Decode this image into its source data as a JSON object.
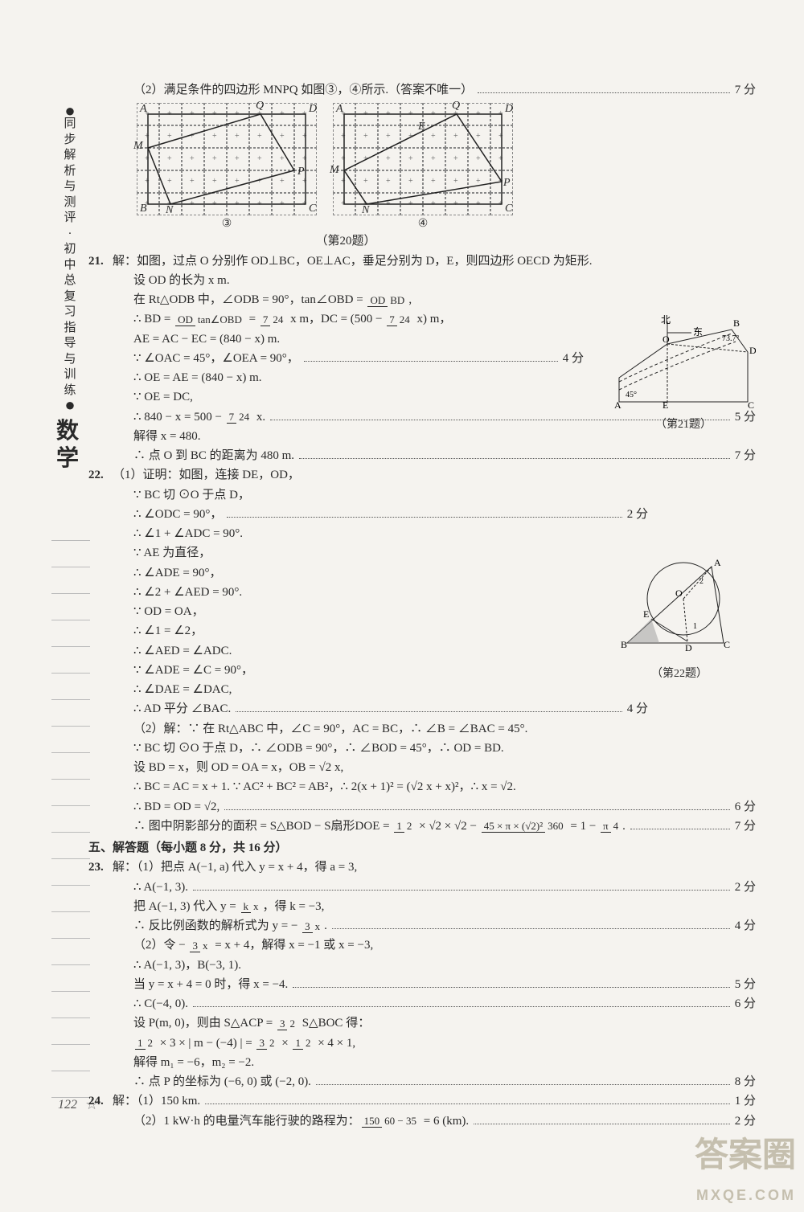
{
  "side": {
    "title_chars": [
      "●",
      "同",
      "步",
      "解",
      "析",
      "与",
      "测",
      "评",
      "·",
      "初",
      "中",
      "总",
      "复",
      "习",
      "指",
      "导",
      "与",
      "训",
      "练",
      "●"
    ],
    "subject": "数学"
  },
  "page_number": "122",
  "watermark_main": "答案圈",
  "watermark_sub": "MXQE.COM",
  "fig20": {
    "caption_row": "（第20题）",
    "label3": "③",
    "label4": "④",
    "pts3": {
      "A": "A",
      "B": "B",
      "C": "C",
      "D": "D",
      "M": "M",
      "N": "N",
      "P": "P",
      "Q": "Q"
    },
    "pts4": {
      "A": "A",
      "C": "C",
      "D": "D",
      "M": "M",
      "N": "N",
      "P": "P",
      "Q": "Q",
      "E": "E"
    },
    "grid": {
      "cols": 8,
      "rows": 5,
      "size": 28,
      "line": "#888"
    },
    "poly_color": "#222"
  },
  "diag21": {
    "caption": "（第21题）",
    "labels": {
      "N": "北",
      "E": "东",
      "A": "A",
      "B": "B",
      "C": "C",
      "D": "D",
      "Ept": "E",
      "O": "O",
      "ang45": "45°",
      "ang73": "73.7°"
    }
  },
  "diag22": {
    "caption": "（第22题）",
    "labels": {
      "A": "A",
      "B": "B",
      "C": "C",
      "D": "D",
      "E": "E",
      "O": "O",
      "n1": "1",
      "n2": "2"
    }
  },
  "lines": {
    "l0": "（2）满足条件的四边形 MNPQ 如图③，④所示.（答案不唯一）",
    "s0": "7 分",
    "q21": "21.",
    "l21a": "解：如图，过点 O 分别作 OD⊥BC，OE⊥AC，垂足分别为 D，E，则四边形 OECD 为矩形.",
    "l21b": "设 OD 的长为 x m.",
    "l21c_pre": "在 Rt△ODB 中，∠ODB = 90°，tan∠OBD = ",
    "l21c_f": {
      "n": "OD",
      "d": "BD"
    },
    "l21c_post": ",",
    "l21d_pre": "∴ BD = ",
    "l21d_f1": {
      "n": "OD",
      "d": "tan∠OBD"
    },
    "l21d_mid": " = ",
    "l21d_f2": {
      "n": "7",
      "d": "24"
    },
    "l21d_mid2": " x  m，DC = (500 − ",
    "l21d_f3": {
      "n": "7",
      "d": "24"
    },
    "l21d_post": " x) m，",
    "l21e": "AE = AC − EC = (840 − x) m.",
    "l21f": "∵ ∠OAC = 45°，∠OEA = 90°，",
    "s21f": "4 分",
    "l21g": "∴ OE = AE = (840 − x) m.",
    "l21h": "∵ OE = DC,",
    "l21i_pre": "∴ 840 − x = 500 − ",
    "l21i_f": {
      "n": "7",
      "d": "24"
    },
    "l21i_post": " x.",
    "s21i": "5 分",
    "l21j": "解得 x = 480.",
    "l21k": "∴ 点 O 到 BC 的距离为 480 m.",
    "s21k": "7 分",
    "q22": "22.",
    "l22a": "（1）证明：如图，连接 DE，OD，",
    "l22b": "∵ BC 切 ⊙O 于点 D，",
    "l22c": "∴ ∠ODC = 90°，",
    "s22c": "2 分",
    "l22d": "∴ ∠1 + ∠ADC = 90°.",
    "l22e": "∵ AE 为直径，",
    "l22f": "∴ ∠ADE = 90°，",
    "l22g": "∴ ∠2 + ∠AED = 90°.",
    "l22h": "∵ OD = OA，",
    "l22i": "∴ ∠1 = ∠2，",
    "l22j": "∴ ∠AED = ∠ADC.",
    "l22k": "∵ ∠ADE = ∠C = 90°，",
    "l22l": "∴ ∠DAE = ∠DAC,",
    "l22m": "∴ AD 平分 ∠BAC.",
    "s22m": "4 分",
    "l22n": "（2）解：∵ 在 Rt△ABC 中，∠C = 90°，AC = BC，∴ ∠B = ∠BAC = 45°.",
    "l22o": "∵ BC 切 ⊙O 于点 D，∴ ∠ODB = 90°，∴ ∠BOD = 45°，∴ OD = BD.",
    "l22p": "设 BD = x，则 OD = OA = x，OB = √2 x,",
    "l22q": "∴ BC = AC = x + 1.  ∵ AC² + BC² = AB²，∴ 2(x + 1)² = (√2 x + x)²，∴ x = √2.",
    "l22r": "∴ BD = OD = √2,",
    "s22r": "6 分",
    "l22s_pre": "∴ 图中阴影部分的面积 = S△BOD − S扇形DOE = ",
    "l22s_f1": {
      "n": "1",
      "d": "2"
    },
    "l22s_mid1": " × √2 × √2 − ",
    "l22s_f2": {
      "n": "45 × π × (√2)²",
      "d": "360"
    },
    "l22s_mid2": " = 1 − ",
    "l22s_f3": {
      "n": "π",
      "d": "4"
    },
    "l22s_post": ".",
    "s22s": "7 分",
    "sec5": "五、解答题（每小题 8 分，共 16 分）",
    "q23": "23.",
    "l23a": "解：（1）把点 A(−1, a) 代入 y = x + 4，得 a = 3,",
    "l23b": "∴ A(−1, 3).",
    "s23b": "2 分",
    "l23c_pre": "把 A(−1, 3) 代入 y = ",
    "l23c_f": {
      "n": "k",
      "d": "x"
    },
    "l23c_post": "，得 k = −3,",
    "l23d_pre": "∴ 反比例函数的解析式为 y = − ",
    "l23d_f": {
      "n": "3",
      "d": "x"
    },
    "l23d_post": ".",
    "s23d": "4 分",
    "l23e_pre": "（2）令 − ",
    "l23e_f": {
      "n": "3",
      "d": "x"
    },
    "l23e_post": " = x + 4，解得 x = −1 或 x = −3,",
    "l23f": "∴ A(−1, 3)，B(−3, 1).",
    "l23g": "当 y = x + 4 = 0 时，得 x = −4.",
    "s23g": "5 分",
    "l23h": "∴ C(−4, 0).",
    "s23h": "6 分",
    "l23i_pre": "设 P(m, 0)，则由 S△ACP = ",
    "l23i_f": {
      "n": "3",
      "d": "2"
    },
    "l23i_post": " S△BOC 得：",
    "l23j_f1": {
      "n": "1",
      "d": "2"
    },
    "l23j_mid1": " × 3 × | m − (−4) | = ",
    "l23j_f2": {
      "n": "3",
      "d": "2"
    },
    "l23j_mid2": " × ",
    "l23j_f3": {
      "n": "1",
      "d": "2"
    },
    "l23j_post": " × 4 × 1,",
    "l23k": "解得 m₁ = −6，m₂ = −2.",
    "l23l": "∴ 点 P 的坐标为 (−6, 0) 或 (−2, 0).",
    "s23l": "8 分",
    "q24": "24.",
    "l24a": "解：（1）150 km.",
    "s24a": "1 分",
    "l24b_pre": "（2）1 kW·h 的电量汽车能行驶的路程为：",
    "l24b_f": {
      "n": "150",
      "d": "60 − 35"
    },
    "l24b_post": " = 6 (km).",
    "s24b": "2 分"
  }
}
